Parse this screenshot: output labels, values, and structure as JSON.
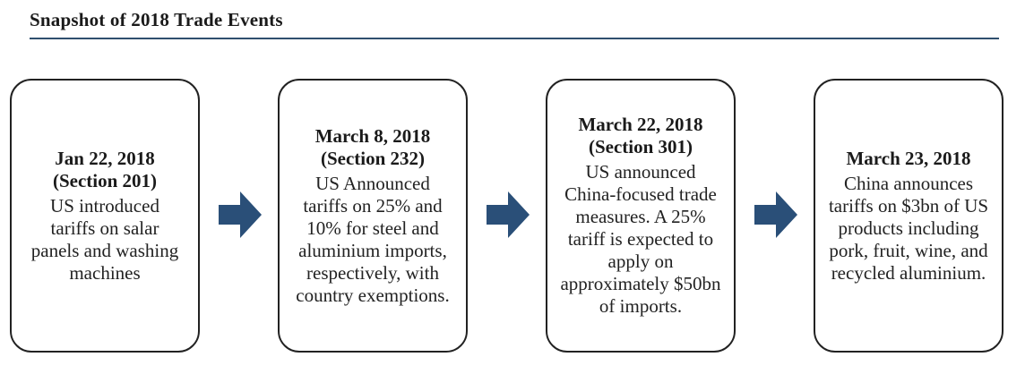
{
  "header": {
    "title": "Snapshot of 2018 Trade Events"
  },
  "colors": {
    "rule": "#2f4f6e",
    "arrow": "#2a4f78",
    "box_border": "#222222"
  },
  "events": [
    {
      "heading_line1": "Jan 22, 2018",
      "heading_line2": "(Section 201)",
      "body": "US introduced tariffs on salar panels and washing machines"
    },
    {
      "heading_line1": "March 8, 2018",
      "heading_line2": "(Section 232)",
      "body": "US Announced tariffs on 25% and 10% for steel and aluminium imports, respectively, with country exemptions."
    },
    {
      "heading_line1": "March 22, 2018",
      "heading_line2": "(Section 301)",
      "body": "US announced China-focused trade measures. A 25% tariff is expected to apply on approximately $50bn of imports."
    },
    {
      "heading_line1": "March 23, 2018",
      "heading_line2": "",
      "body": "China announces tariffs on $3bn of US products including pork, fruit, wine, and recycled aluminium."
    }
  ],
  "arrows": [
    {
      "icon": "right-arrow-icon"
    },
    {
      "icon": "right-arrow-icon"
    },
    {
      "icon": "right-arrow-icon"
    }
  ]
}
